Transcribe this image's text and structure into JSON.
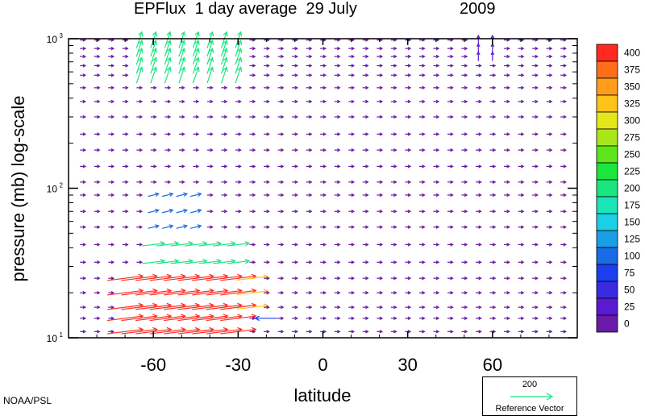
{
  "title": {
    "main": "EPFlux  1 day average  29 July",
    "year": "2009"
  },
  "credit": "NOAA/PSL",
  "reference": {
    "magnitude": "200",
    "label": "Reference Vector",
    "color": "#35e895"
  },
  "chart_data": {
    "type": "vector field",
    "title": "EPFlux  1 day average  29 July       2009",
    "xlabel": "latitude",
    "ylabel": "pressure (mb)  log-scale",
    "xlim": [
      -90,
      90
    ],
    "ylim": [
      1000,
      10
    ],
    "y_scale": "log",
    "x_ticks": [
      -60,
      -30,
      0,
      30,
      60
    ],
    "x_tick_labels": [
      "-60",
      "-30",
      "0",
      "30",
      "60"
    ],
    "y_ticks": [
      1000,
      100,
      10
    ],
    "y_tick_labels": [
      {
        "base": "10",
        "exp": "3"
      },
      {
        "base": "10",
        "exp": "2"
      },
      {
        "base": "10",
        "exp": "1"
      }
    ],
    "colorbar": {
      "levels": [
        "400",
        "375",
        "350",
        "325",
        "300",
        "275",
        "250",
        "225",
        "200",
        "175",
        "150",
        "125",
        "100",
        "75",
        "50",
        "25",
        "0"
      ],
      "colors": [
        "#ff2a1f",
        "#ff6d1a",
        "#ff9c1a",
        "#ffc21a",
        "#e6e61a",
        "#a8e61a",
        "#5ce61a",
        "#1ae63b",
        "#1ae680",
        "#1ae6b8",
        "#1acfe6",
        "#1a9ee6",
        "#1a6ce6",
        "#1a3ef0",
        "#3a2ae0",
        "#5a1ad0",
        "#6a1aa8"
      ]
    },
    "grid_latitudes": [
      -85,
      -80,
      -75,
      -70,
      -65,
      -60,
      -55,
      -50,
      -45,
      -40,
      -35,
      -30,
      -25,
      -20,
      -15,
      -10,
      -5,
      0,
      5,
      10,
      15,
      20,
      25,
      30,
      35,
      40,
      45,
      50,
      55,
      60,
      65,
      70,
      75,
      80,
      85
    ],
    "grid_pressures": [
      980,
      860,
      760,
      660,
      570,
      470,
      380,
      300,
      230,
      180,
      140,
      110,
      90,
      70,
      55,
      42,
      32,
      25,
      20,
      16,
      13.5,
      11
    ],
    "background_vector": {
      "u": 6,
      "v": 0,
      "magnitude": 8
    },
    "features": [
      {
        "lat_range": [
          -72,
          -28
        ],
        "p_range": [
          10,
          30
        ],
        "u": 40,
        "v": 5,
        "magnitude": 400,
        "note": "strong poleward-upward flux, red"
      },
      {
        "lat_range": [
          -62,
          -22
        ],
        "p_range": [
          16,
          25
        ],
        "u": 35,
        "v": 4,
        "magnitude": 330
      },
      {
        "lat_range": [
          -62,
          -30
        ],
        "p_range": [
          25,
          45
        ],
        "u": 25,
        "v": 3,
        "magnitude": 220
      },
      {
        "lat_range": [
          -62,
          -45
        ],
        "p_range": [
          45,
          100
        ],
        "u": 12,
        "v": 3,
        "magnitude": 110
      },
      {
        "lat_range": [
          -66,
          -30
        ],
        "p_range": [
          550,
          1000
        ],
        "u": 6,
        "v": 18,
        "magnitude": 200,
        "note": "upward flux near surface"
      },
      {
        "lat": -21,
        "p": 13.5,
        "u": -25,
        "v": 0,
        "magnitude": 80,
        "note": "equatorward arrow near top"
      },
      {
        "lat_range": [
          55,
          60
        ],
        "p_range": [
          750,
          1000
        ],
        "u": 0,
        "v": 10,
        "magnitude": 40
      }
    ]
  }
}
